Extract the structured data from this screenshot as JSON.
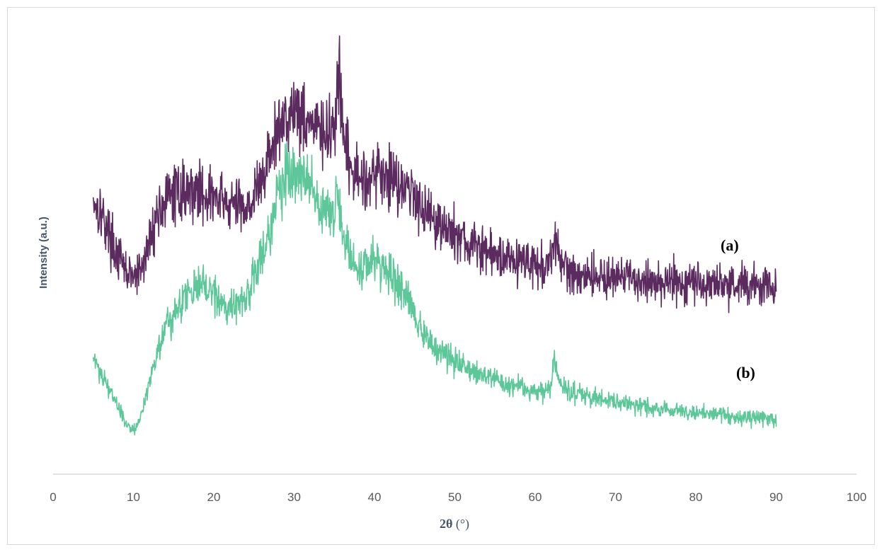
{
  "chart_data": {
    "type": "line",
    "xlabel_bold": "2θ",
    "xlabel_unit": " (°)",
    "ylabel": "Intensity (a.u.)",
    "xlim": [
      0,
      100
    ],
    "xticks": [
      "0",
      "10",
      "20",
      "30",
      "40",
      "50",
      "60",
      "70",
      "80",
      "90",
      "100"
    ],
    "y_ticks_shown": false,
    "grid": false,
    "legend": "none",
    "annotations": [
      {
        "text": "(a)",
        "series": "a"
      },
      {
        "text": "(b)",
        "series": "b"
      }
    ],
    "series": [
      {
        "name": "(a)",
        "color": "#5b2a5e",
        "x": [
          5,
          6,
          7,
          8,
          9,
          10,
          11,
          12,
          13,
          14,
          15,
          16,
          17,
          18,
          19,
          20,
          22,
          24,
          25,
          26,
          27,
          28,
          29,
          30,
          31,
          32,
          33,
          34,
          35,
          35.6,
          36,
          37,
          38,
          40,
          42,
          44,
          46,
          48,
          50,
          52,
          54,
          56,
          58,
          60,
          61,
          62,
          62.6,
          63,
          64,
          66,
          70,
          75,
          80,
          85,
          90
        ],
        "values": [
          72,
          68,
          62,
          56,
          52,
          50,
          52,
          60,
          68,
          71,
          73,
          74,
          74,
          74,
          73,
          72,
          70,
          70,
          72,
          77,
          84,
          90,
          95,
          97,
          95,
          93,
          91,
          88,
          92,
          104,
          90,
          80,
          77,
          79,
          78,
          75,
          70,
          65,
          62,
          59,
          57,
          56,
          55,
          54,
          53,
          54,
          60,
          56,
          52,
          51,
          50,
          49,
          49,
          48,
          48
        ]
      },
      {
        "name": "(b)",
        "color": "#5ec79a",
        "x": [
          5,
          6,
          7,
          8,
          9,
          10,
          11,
          12,
          13,
          14,
          15,
          16,
          17,
          18,
          19,
          20,
          22,
          24,
          25,
          26,
          27,
          28,
          29,
          30,
          31,
          32,
          33,
          34,
          35,
          35.5,
          36,
          37,
          38,
          40,
          42,
          44,
          46,
          48,
          50,
          52,
          54,
          56,
          58,
          60,
          61,
          62,
          62.4,
          63,
          64,
          66,
          70,
          75,
          80,
          85,
          90
        ],
        "values": [
          28,
          24,
          20,
          15,
          10,
          8,
          12,
          22,
          30,
          36,
          40,
          45,
          47,
          48,
          47,
          45,
          42,
          44,
          50,
          56,
          64,
          72,
          78,
          80,
          78,
          76,
          72,
          69,
          68,
          72,
          63,
          55,
          52,
          54,
          52,
          45,
          35,
          30,
          27,
          25,
          23,
          21,
          20,
          19,
          19,
          21,
          28,
          22,
          19,
          18,
          16,
          14,
          13,
          12,
          11
        ]
      }
    ]
  }
}
